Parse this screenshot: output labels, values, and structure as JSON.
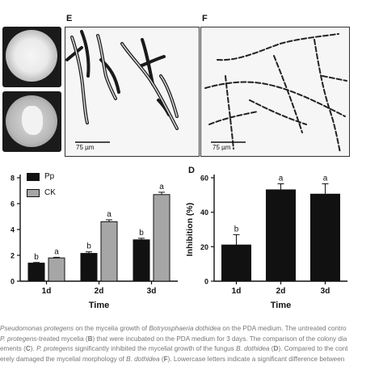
{
  "panels": {
    "e_letter": "E",
    "f_letter": "F",
    "d_letter": "D",
    "scale_e": "75 µm",
    "scale_f": "75 µm"
  },
  "colors": {
    "pp": "#111111",
    "ck": "#a6a6a6",
    "inhibition": "#111111"
  },
  "chart_data": [
    {
      "type": "bar",
      "categories": [
        "1d",
        "2d",
        "3d"
      ],
      "series": [
        {
          "name": "Pp",
          "values": [
            1.4,
            2.15,
            3.2
          ],
          "errors": [
            0.05,
            0.12,
            0.12
          ],
          "letters": [
            "b",
            "b",
            "b"
          ]
        },
        {
          "name": "CK",
          "values": [
            1.8,
            4.6,
            6.7
          ],
          "errors": [
            0.05,
            0.15,
            0.18
          ],
          "letters": [
            "a",
            "a",
            "a"
          ]
        }
      ],
      "xlabel": "Time",
      "ylabel": "",
      "ylim": [
        0,
        8
      ],
      "yticks": [
        "0",
        "2",
        "4",
        "6",
        "8"
      ],
      "legend": "top-left"
    },
    {
      "type": "bar",
      "categories": [
        "1d",
        "2d",
        "3d"
      ],
      "series": [
        {
          "values": [
            21,
            53,
            50.5
          ],
          "errors": [
            6,
            3.5,
            6
          ],
          "letters": [
            "b",
            "a",
            "a"
          ]
        }
      ],
      "xlabel": "Time",
      "ylabel": "Inhibition (%)",
      "ylim": [
        0,
        60
      ],
      "yticks": [
        "0",
        "20",
        "40",
        "60"
      ]
    }
  ],
  "caption": {
    "line1_a": "Pseudomonas protegens",
    "line1_b": " on the mycelia growth of ",
    "line1_c": "Botryosphaeria dothidea",
    "line1_d": " on the PDA medium. The untreated contro",
    "line2_a": "P. protegens",
    "line2_b": "-treated mycelia (",
    "line2_c": "B",
    "line2_d": ") that were incubated on the PDA medium for 3 days. The comparison of the colony dia",
    "line3_a": "ements (",
    "line3_b": "C",
    "line3_c": "). ",
    "line3_d": "P. protegens",
    "line3_e": " significantly inhibited the mycelial growth of the fungus ",
    "line3_f": "B. dothidea",
    "line3_g": " (",
    "line3_h": "D",
    "line3_i": "). Compared to the cont",
    "line4_a": "erely damaged the mycelial morphology of ",
    "line4_b": "B. dothidea",
    "line4_c": " (",
    "line4_d": "F",
    "line4_e": "). Lowercase letters indicate a significant difference between"
  }
}
